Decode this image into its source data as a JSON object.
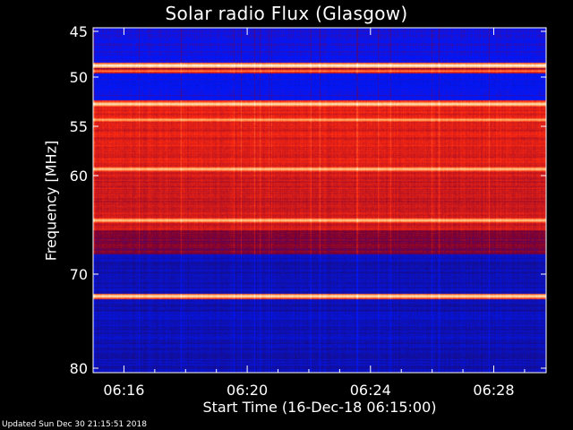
{
  "chart_data": {
    "type": "heatmap",
    "title": "Solar radio Flux (Glasgow)",
    "xlabel": "Start Time (16-Dec-18 06:15:00)",
    "ylabel": "Frequency [MHz]",
    "x_ticks": [
      "06:16",
      "06:20",
      "06:24",
      "06:28"
    ],
    "x_tick_minutes": [
      1,
      5,
      9,
      13
    ],
    "xlim_minutes": [
      0,
      14.7
    ],
    "y_ticks": [
      45,
      50,
      55,
      60,
      70,
      80
    ],
    "ylim_mhz": [
      45,
      80
    ],
    "y_scale": "nonlinear-frequency",
    "grid": false,
    "colormap": [
      "#1a0a6e",
      "#0018ff",
      "#7a0030",
      "#ff2a10",
      "#ffb060",
      "#ffffff"
    ],
    "bands": [
      {
        "freq": 46.5,
        "level": 0.3
      },
      {
        "freq": 48.7,
        "level": 1.0
      },
      {
        "freq": 49.3,
        "level": 0.75
      },
      {
        "freq": 51.8,
        "level": 0.3
      },
      {
        "freq": 52.7,
        "level": 0.95
      },
      {
        "freq": 54.3,
        "level": 0.85
      },
      {
        "freq": 59.3,
        "level": 0.9
      },
      {
        "freq": 64.5,
        "level": 0.9
      },
      {
        "freq": 72.3,
        "level": 0.95
      }
    ]
  },
  "footer": "Updated Sun Dec 30 21:15:51 2018"
}
